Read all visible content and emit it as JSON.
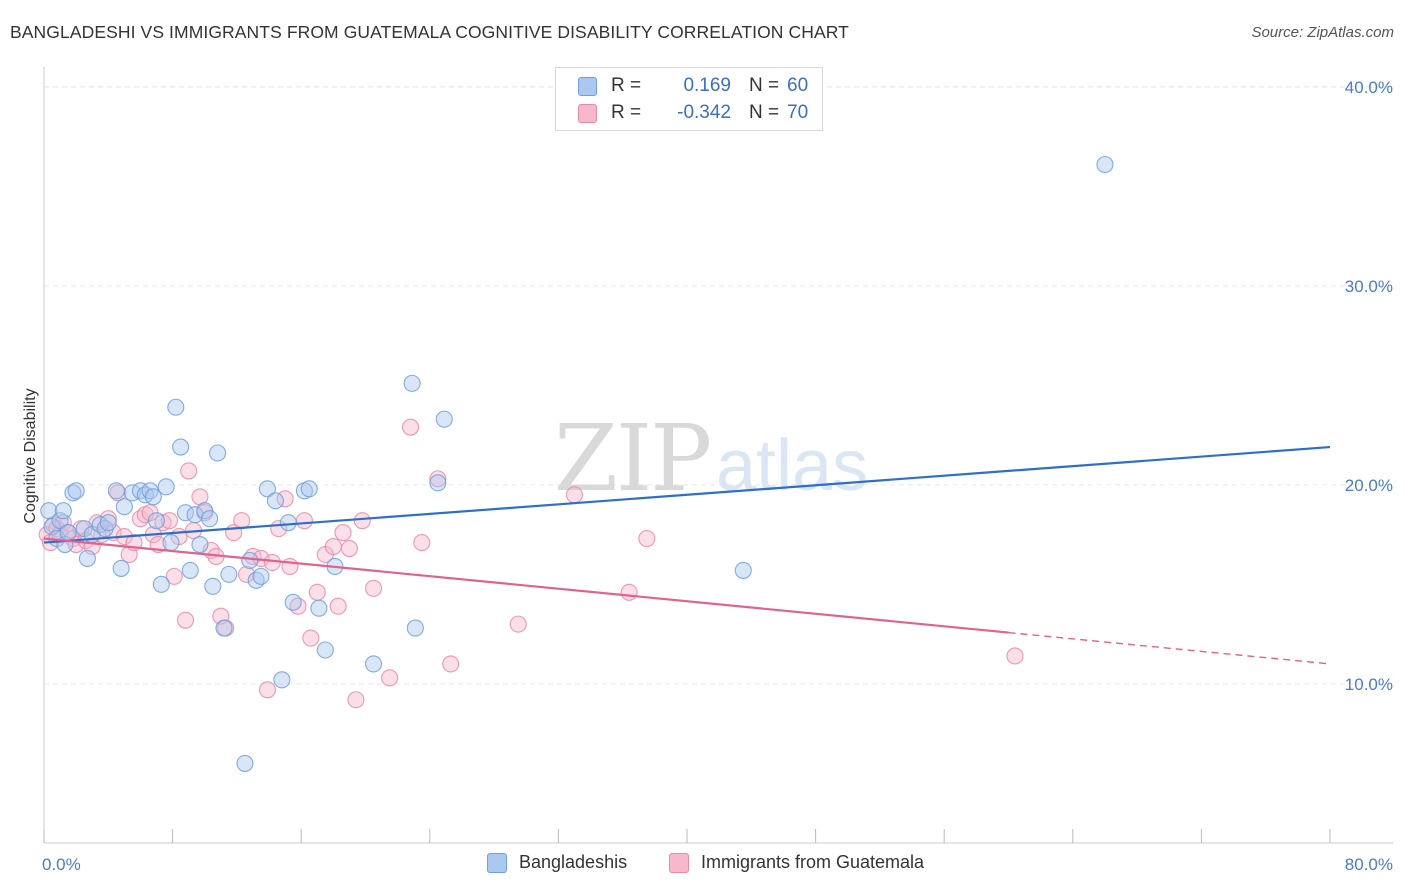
{
  "header": {
    "title": "BANGLADESHI VS IMMIGRANTS FROM GUATEMALA COGNITIVE DISABILITY CORRELATION CHART",
    "source": "Source: ZipAtlas.com"
  },
  "legend_top": {
    "rows": [
      {
        "r_label": "R =",
        "r_value": "0.169",
        "n_label": "N =",
        "n_value": "60"
      },
      {
        "r_label": "R =",
        "r_value": "-0.342",
        "n_label": "N =",
        "n_value": "70"
      }
    ]
  },
  "legend_bottom": {
    "items": [
      "Bangladeshis",
      "Immigrants from Guatemala"
    ]
  },
  "colors": {
    "blue_fill": "#aac8f0",
    "blue_stroke": "#6f9fdc",
    "blue_line": "#2e6fc8",
    "pink_fill": "#f7b8cc",
    "pink_stroke": "#e88aa8",
    "pink_line": "#e0628e",
    "grid": "#e6e6e6",
    "tick_label": "#4a7cc7"
  },
  "watermark": {
    "part1": "ZIP",
    "part2": "atlas"
  },
  "chart_data": {
    "type": "scatter",
    "title": "BANGLADESHI VS IMMIGRANTS FROM GUATEMALA COGNITIVE DISABILITY CORRELATION CHART",
    "xlabel": "",
    "ylabel": "Cognitive Disability",
    "xlim": [
      0,
      80
    ],
    "ylim": [
      2,
      41
    ],
    "x_tick_labels": [
      "0.0%",
      "80.0%"
    ],
    "y_ticks": [
      10,
      20,
      30,
      40
    ],
    "y_tick_labels": [
      "10.0%",
      "20.0%",
      "30.0%",
      "40.0%"
    ],
    "grid": true,
    "legend_placement": "top-center and bottom",
    "series": [
      {
        "name": "Bangladeshis",
        "R": 0.169,
        "N": 60,
        "trend": {
          "x0": 0,
          "y0": 17.1,
          "x1": 80,
          "y1": 21.9,
          "solid_until": 80
        },
        "points": [
          [
            0.3,
            18.7
          ],
          [
            0.5,
            17.9
          ],
          [
            0.8,
            17.3
          ],
          [
            1.0,
            18.2
          ],
          [
            1.2,
            18.7
          ],
          [
            1.3,
            17.0
          ],
          [
            1.5,
            17.6
          ],
          [
            1.8,
            19.6
          ],
          [
            2.0,
            19.7
          ],
          [
            2.5,
            17.8
          ],
          [
            2.7,
            16.3
          ],
          [
            3.0,
            17.5
          ],
          [
            3.5,
            18.0
          ],
          [
            3.8,
            17.8
          ],
          [
            4.0,
            18.1
          ],
          [
            4.5,
            19.7
          ],
          [
            4.8,
            15.8
          ],
          [
            5.0,
            18.9
          ],
          [
            5.5,
            19.6
          ],
          [
            6.0,
            19.7
          ],
          [
            6.3,
            19.5
          ],
          [
            6.6,
            19.7
          ],
          [
            6.8,
            19.4
          ],
          [
            7.0,
            18.2
          ],
          [
            7.3,
            15.0
          ],
          [
            7.6,
            19.9
          ],
          [
            7.9,
            17.1
          ],
          [
            8.2,
            23.9
          ],
          [
            8.5,
            21.9
          ],
          [
            8.8,
            18.6
          ],
          [
            9.1,
            15.7
          ],
          [
            9.4,
            18.5
          ],
          [
            9.7,
            17.0
          ],
          [
            10.0,
            18.7
          ],
          [
            10.3,
            18.3
          ],
          [
            10.5,
            14.9
          ],
          [
            10.8,
            21.6
          ],
          [
            11.2,
            12.8
          ],
          [
            11.5,
            15.5
          ],
          [
            12.5,
            6.0
          ],
          [
            12.8,
            16.2
          ],
          [
            13.2,
            15.2
          ],
          [
            13.5,
            15.4
          ],
          [
            13.9,
            19.8
          ],
          [
            14.4,
            19.2
          ],
          [
            14.8,
            10.2
          ],
          [
            15.2,
            18.1
          ],
          [
            15.5,
            14.1
          ],
          [
            16.2,
            19.7
          ],
          [
            16.5,
            19.8
          ],
          [
            17.1,
            13.8
          ],
          [
            17.5,
            11.7
          ],
          [
            18.1,
            15.9
          ],
          [
            20.5,
            11.0
          ],
          [
            22.9,
            25.1
          ],
          [
            23.1,
            12.8
          ],
          [
            24.5,
            20.1
          ],
          [
            24.9,
            23.3
          ],
          [
            43.5,
            15.7
          ],
          [
            66.0,
            36.1
          ]
        ]
      },
      {
        "name": "Immigrants from Guatemala",
        "R": -0.342,
        "N": 70,
        "trend": {
          "x0": 0,
          "y0": 17.3,
          "x1": 80,
          "y1": 11.0,
          "solid_until": 60
        },
        "points": [
          [
            0.2,
            17.5
          ],
          [
            0.4,
            17.1
          ],
          [
            0.6,
            18.0
          ],
          [
            0.8,
            17.8
          ],
          [
            1.0,
            17.5
          ],
          [
            1.2,
            18.1
          ],
          [
            1.5,
            17.6
          ],
          [
            1.8,
            17.3
          ],
          [
            2.0,
            17.0
          ],
          [
            2.3,
            17.8
          ],
          [
            2.6,
            17.2
          ],
          [
            3.0,
            16.9
          ],
          [
            3.3,
            18.1
          ],
          [
            3.6,
            17.5
          ],
          [
            4.0,
            18.3
          ],
          [
            4.3,
            17.6
          ],
          [
            4.6,
            19.6
          ],
          [
            5.0,
            17.4
          ],
          [
            5.3,
            16.5
          ],
          [
            5.6,
            17.1
          ],
          [
            6.0,
            18.3
          ],
          [
            6.3,
            18.5
          ],
          [
            6.6,
            18.6
          ],
          [
            6.8,
            17.5
          ],
          [
            7.1,
            17.0
          ],
          [
            7.4,
            18.1
          ],
          [
            7.8,
            18.2
          ],
          [
            8.1,
            15.4
          ],
          [
            8.4,
            17.4
          ],
          [
            8.8,
            13.2
          ],
          [
            9.0,
            20.7
          ],
          [
            9.3,
            17.7
          ],
          [
            9.7,
            19.4
          ],
          [
            10.0,
            18.6
          ],
          [
            10.4,
            16.7
          ],
          [
            10.7,
            16.4
          ],
          [
            11.0,
            13.4
          ],
          [
            11.3,
            12.8
          ],
          [
            11.8,
            17.6
          ],
          [
            12.3,
            18.2
          ],
          [
            12.6,
            15.5
          ],
          [
            13.0,
            16.4
          ],
          [
            13.5,
            16.3
          ],
          [
            13.9,
            9.7
          ],
          [
            14.2,
            16.1
          ],
          [
            14.6,
            17.8
          ],
          [
            15.0,
            19.3
          ],
          [
            15.3,
            15.9
          ],
          [
            15.8,
            13.9
          ],
          [
            16.2,
            18.2
          ],
          [
            16.6,
            12.3
          ],
          [
            17.0,
            14.6
          ],
          [
            17.5,
            16.5
          ],
          [
            18.0,
            16.9
          ],
          [
            18.3,
            13.9
          ],
          [
            18.6,
            17.6
          ],
          [
            19.0,
            16.8
          ],
          [
            19.4,
            9.2
          ],
          [
            19.8,
            18.2
          ],
          [
            20.5,
            14.8
          ],
          [
            21.5,
            10.3
          ],
          [
            22.8,
            22.9
          ],
          [
            23.5,
            17.1
          ],
          [
            24.5,
            20.3
          ],
          [
            25.3,
            11.0
          ],
          [
            29.5,
            13.0
          ],
          [
            33.0,
            19.5
          ],
          [
            36.4,
            14.6
          ],
          [
            37.5,
            17.3
          ],
          [
            60.4,
            11.4
          ]
        ]
      }
    ]
  }
}
